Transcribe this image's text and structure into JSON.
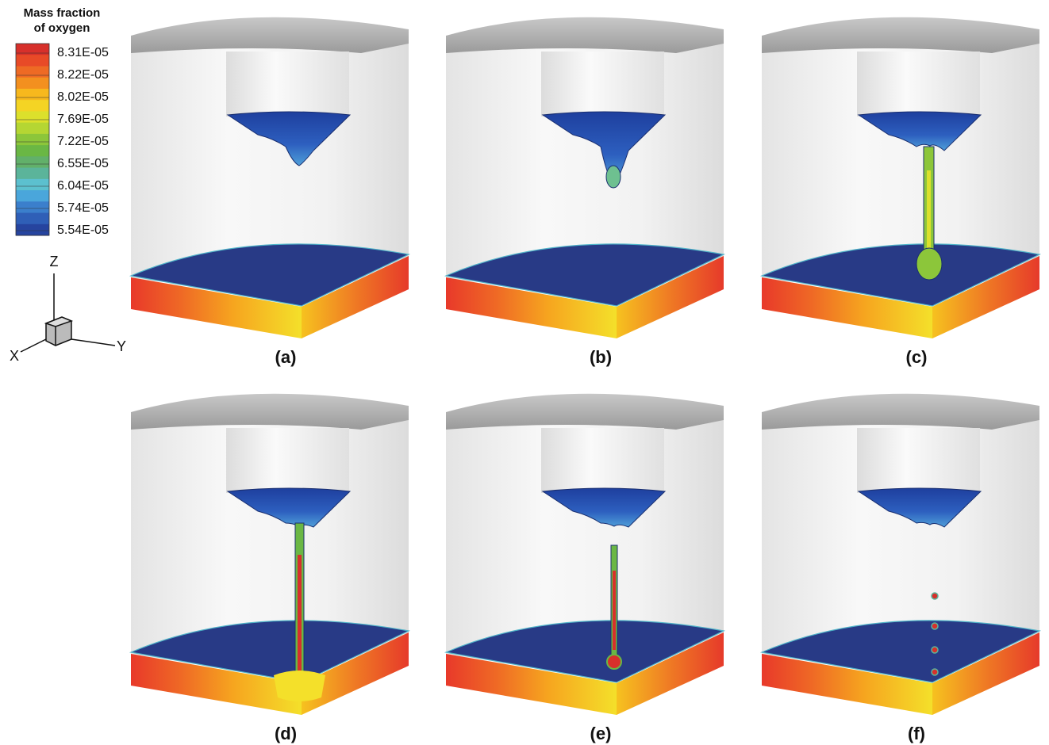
{
  "legend": {
    "title": [
      "Mass fraction",
      "of oxygen"
    ],
    "labels": [
      "8.31E-05",
      "8.22E-05",
      "8.02E-05",
      "7.69E-05",
      "7.22E-05",
      "6.55E-05",
      "6.04E-05",
      "5.74E-05",
      "5.54E-05"
    ]
  },
  "axes": {
    "z": "Z",
    "x": "X",
    "y": "Y"
  },
  "panels": [
    "(a)",
    "(b)",
    "(c)",
    "(d)",
    "(e)",
    "(f)"
  ]
}
